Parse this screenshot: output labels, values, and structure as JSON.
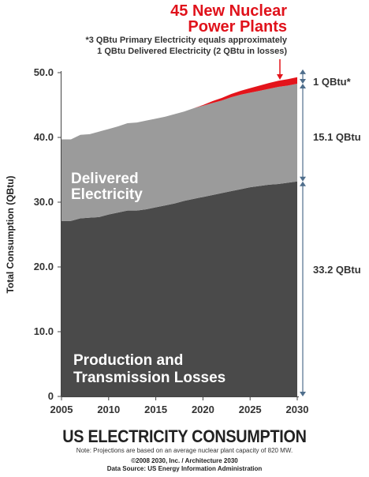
{
  "headline": {
    "line1": "45 New Nuclear",
    "line2": "Power Plants"
  },
  "footnote": {
    "line1": "*3 QBtu Primary Electricity equals approximately",
    "line2": "1 QBtu Delivered Electricity (2 QBtu in losses)"
  },
  "title": "US ELECTRICITY CONSUMPTION",
  "note": "Note: Projections are based on an average nuclear plant capacity of 820 MW.",
  "credit": {
    "line1": "©2008 2030, Inc. / Architecture 2030",
    "line2": "Data Source: US Energy Information Administration"
  },
  "colors": {
    "losses": "#4a4a4a",
    "delivered": "#9b9b9b",
    "nuclear": "#e3141b",
    "bracket": "#4f6e8c",
    "headline": "#e0121b"
  },
  "chart_data": {
    "type": "area",
    "stacked": true,
    "ylabel": "Total Consumption (QBtu)",
    "xlabel": "",
    "ylim": [
      0,
      50
    ],
    "xlim": [
      2005,
      2030
    ],
    "yticks": [
      "0",
      "10.0",
      "20.0",
      "30.0",
      "40.0",
      "50.0"
    ],
    "xticks": [
      "2005",
      "2010",
      "2015",
      "2020",
      "2025",
      "2030"
    ],
    "grid": false,
    "x": [
      2005,
      2006,
      2007,
      2008,
      2009,
      2010,
      2011,
      2012,
      2013,
      2014,
      2015,
      2016,
      2017,
      2018,
      2019,
      2020,
      2021,
      2022,
      2023,
      2024,
      2025,
      2026,
      2027,
      2028,
      2029,
      2030
    ],
    "series": [
      {
        "name": "Production and Transmission Losses",
        "label_lines": [
          "Production and",
          "Transmission Losses"
        ],
        "values": [
          27.1,
          27.1,
          27.5,
          27.6,
          27.7,
          28.1,
          28.4,
          28.7,
          28.7,
          28.9,
          29.2,
          29.5,
          29.8,
          30.2,
          30.5,
          30.8,
          31.1,
          31.4,
          31.7,
          32.0,
          32.3,
          32.5,
          32.7,
          32.8,
          33.0,
          33.2
        ]
      },
      {
        "name": "Delivered Electricity",
        "label_lines": [
          "Delivered",
          "Electricity"
        ],
        "values": [
          12.6,
          12.6,
          12.9,
          12.9,
          13.2,
          13.2,
          13.3,
          13.5,
          13.6,
          13.7,
          13.7,
          13.7,
          13.8,
          13.8,
          14.0,
          14.1,
          14.2,
          14.3,
          14.5,
          14.6,
          14.6,
          14.7,
          14.8,
          15.0,
          15.0,
          15.1
        ]
      },
      {
        "name": "45 New Nuclear Power Plants",
        "values": [
          0,
          0,
          0,
          0,
          0,
          0,
          0,
          0,
          0,
          0,
          0,
          0,
          0,
          0,
          0,
          0.1,
          0.3,
          0.4,
          0.5,
          0.6,
          0.7,
          0.8,
          0.9,
          0.95,
          1.0,
          1.0
        ]
      }
    ],
    "annotations": [
      "1 QBtu*",
      "15.1 QBtu",
      "33.2 QBtu"
    ]
  }
}
